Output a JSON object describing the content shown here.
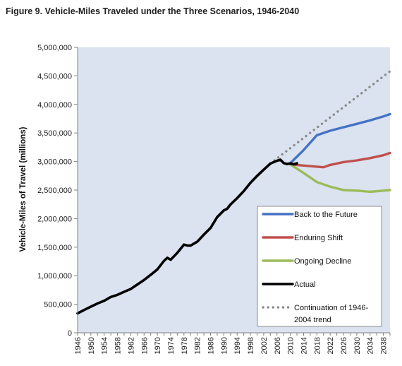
{
  "page": {
    "title": "Figure 9. Vehicle-Miles Traveled under the Three Scenarios, 1946-2040"
  },
  "chart_data": {
    "type": "line",
    "title": "Figure 9. Vehicle-Miles Traveled under the Three Scenarios, 1946-2040",
    "xlabel": "",
    "ylabel": "Vehicle-Miles of Travel (millions)",
    "xlim": [
      1946,
      2040
    ],
    "ylim": [
      0,
      5000000
    ],
    "y_ticks": [
      0,
      500000,
      1000000,
      1500000,
      2000000,
      2500000,
      3000000,
      3500000,
      4000000,
      4500000,
      5000000
    ],
    "y_tick_labels": [
      "0",
      "500,000",
      "1,000,000",
      "1,500,000",
      "2,000,000",
      "2,500,000",
      "3,000,000",
      "3,500,000",
      "4,000,000",
      "4,500,000",
      "5,000,000"
    ],
    "x_tick_labels": [
      "1946",
      "1950",
      "1954",
      "1958",
      "1962",
      "1966",
      "1970",
      "1974",
      "1978",
      "1982",
      "1986",
      "1990",
      "1994",
      "1998",
      "2002",
      "2006",
      "2010",
      "2014",
      "2018",
      "2022",
      "2026",
      "2030",
      "2034",
      "2038"
    ],
    "grid": false,
    "background": "#dbe3f0",
    "legend_position": "bottom-right",
    "series": [
      {
        "name": "Back to the Future",
        "color": "#4472c4",
        "style": "solid",
        "x": [
          2010,
          2014,
          2018,
          2022,
          2026,
          2030,
          2034,
          2038,
          2040
        ],
        "y": [
          2970000,
          3200000,
          3460000,
          3540000,
          3600000,
          3660000,
          3720000,
          3790000,
          3830000
        ]
      },
      {
        "name": "Enduring Shift",
        "color": "#c0504d",
        "style": "solid",
        "x": [
          2010,
          2014,
          2018,
          2020,
          2022,
          2026,
          2030,
          2034,
          2038,
          2040
        ],
        "y": [
          2950000,
          2930000,
          2910000,
          2900000,
          2940000,
          2990000,
          3020000,
          3060000,
          3110000,
          3150000
        ]
      },
      {
        "name": "Ongoing Decline",
        "color": "#9bbb59",
        "style": "solid",
        "x": [
          2010,
          2014,
          2018,
          2022,
          2026,
          2030,
          2034,
          2038,
          2040
        ],
        "y": [
          2950000,
          2800000,
          2640000,
          2560000,
          2500000,
          2490000,
          2470000,
          2490000,
          2500000
        ]
      },
      {
        "name": "Actual",
        "color": "#000000",
        "style": "solid",
        "x": [
          1946,
          1948,
          1950,
          1952,
          1954,
          1956,
          1958,
          1960,
          1962,
          1964,
          1966,
          1968,
          1970,
          1972,
          1973,
          1974,
          1976,
          1978,
          1979,
          1980,
          1982,
          1984,
          1986,
          1988,
          1990,
          1991,
          1992,
          1994,
          1996,
          1998,
          2000,
          2002,
          2004,
          2006,
          2007,
          2008,
          2009,
          2010,
          2011,
          2012
        ],
        "y": [
          340000,
          400000,
          458000,
          513000,
          561000,
          628000,
          665000,
          718000,
          767000,
          846000,
          926000,
          1016000,
          1110000,
          1260000,
          1313000,
          1280000,
          1400000,
          1545000,
          1530000,
          1527000,
          1595000,
          1720000,
          1835000,
          2026000,
          2144000,
          2172000,
          2247000,
          2358000,
          2482000,
          2628000,
          2747000,
          2856000,
          2964000,
          3014000,
          3032000,
          2973000,
          2957000,
          2967000,
          2950000,
          2969000
        ]
      },
      {
        "name": "Continuation of 1946-2004 trend",
        "color": "#8c8c8c",
        "style": "dotted",
        "x": [
          2004,
          2040
        ],
        "y": [
          2964000,
          4580000
        ]
      }
    ],
    "legend": [
      "Back to the Future",
      "Enduring Shift",
      "Ongoing Decline",
      "Actual",
      "Continuation of 1946-",
      "2004 trend"
    ]
  }
}
